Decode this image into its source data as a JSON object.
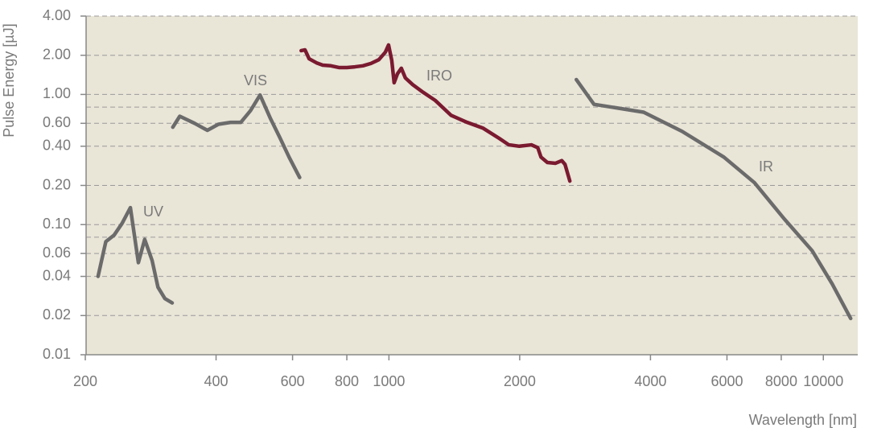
{
  "chart_data": {
    "type": "line",
    "xlabel": "Wavelength [nm]",
    "ylabel": "Pulse Energy [µJ]",
    "xscale": "log",
    "yscale": "log",
    "grid": true,
    "xlim": [
      200,
      12000
    ],
    "ylim": [
      0.01,
      4
    ],
    "xticks": [
      200,
      400,
      600,
      800,
      1000,
      2000,
      4000,
      6000,
      8000,
      10000
    ],
    "yticks": [
      0.01,
      {
        "value": 0.02,
        "label": "0.02"
      },
      {
        "value": 0.04,
        "label": "0.04"
      },
      {
        "value": 0.06,
        "label": "0.06"
      },
      {
        "value": 0.1,
        "label": "0.10"
      },
      {
        "value": 0.2,
        "label": "0.20"
      },
      {
        "value": 0.4,
        "label": "0.40"
      },
      {
        "value": 0.6,
        "label": "0.60"
      },
      {
        "value": 1,
        "label": "1.00"
      },
      {
        "value": 2,
        "label": "2.00"
      },
      {
        "value": 4,
        "label": "4.00"
      }
    ],
    "minor_yticks": [
      0.08,
      0.8
    ],
    "series": [
      {
        "name": "UV",
        "color": "#6b6b6b",
        "x": [
          214,
          223,
          233,
          243,
          254,
          265,
          274,
          285,
          294,
          305,
          317
        ],
        "values": [
          0.04,
          0.074,
          0.083,
          0.102,
          0.135,
          0.051,
          0.077,
          0.053,
          0.033,
          0.027,
          0.025
        ]
      },
      {
        "name": "VIS",
        "color": "#6b6b6b",
        "x": [
          318,
          330,
          357,
          382,
          405,
          432,
          456,
          480,
          505,
          534,
          562,
          589,
          623
        ],
        "values": [
          0.56,
          0.68,
          0.6,
          0.53,
          0.59,
          0.61,
          0.61,
          0.75,
          0.99,
          0.65,
          0.46,
          0.33,
          0.23
        ]
      },
      {
        "name": "IRO",
        "color": "#7a1a30",
        "x": [
          628,
          641,
          655,
          681,
          704,
          735,
          767,
          800,
          835,
          871,
          909,
          948,
          981,
          998,
          1015,
          1028,
          1046,
          1068,
          1091,
          1134,
          1198,
          1278,
          1391,
          1514,
          1648,
          1794,
          1888,
          1996,
          2128,
          2201,
          2239,
          2316,
          2418,
          2500,
          2543,
          2609
        ],
        "values": [
          2.17,
          2.2,
          1.88,
          1.75,
          1.68,
          1.66,
          1.61,
          1.61,
          1.63,
          1.66,
          1.73,
          1.85,
          2.11,
          2.4,
          1.83,
          1.23,
          1.44,
          1.59,
          1.34,
          1.19,
          1.04,
          0.9,
          0.69,
          0.61,
          0.55,
          0.46,
          0.41,
          0.4,
          0.41,
          0.39,
          0.33,
          0.3,
          0.296,
          0.31,
          0.29,
          0.216
        ]
      },
      {
        "name": "IR",
        "color": "#6b6b6b",
        "x": [
          2700,
          2965,
          3858,
          4732,
          5902,
          6940,
          8121,
          9424,
          10480,
          11560
        ],
        "values": [
          1.3,
          0.84,
          0.73,
          0.52,
          0.33,
          0.21,
          0.111,
          0.063,
          0.035,
          0.019
        ]
      }
    ]
  }
}
